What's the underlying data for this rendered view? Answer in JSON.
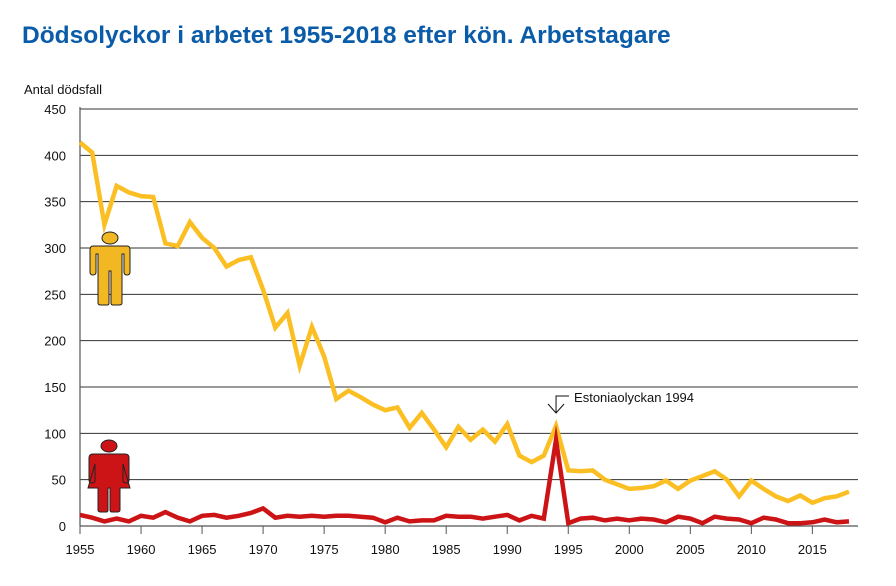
{
  "chart_data": {
    "type": "line",
    "title": "Dödsolyckor i arbetet 1955-2018 efter kön. Arbetstagare",
    "xlabel": "",
    "ylabel": "Antal dödsfall",
    "xlim": [
      1955,
      2018
    ],
    "ylim": [
      0,
      450
    ],
    "grid": true,
    "x_ticks": [
      "1955",
      "1960",
      "1965",
      "1970",
      "1975",
      "1980",
      "1985",
      "1990",
      "1995",
      "2000",
      "2005",
      "2010",
      "2015"
    ],
    "y_ticks": [
      "0",
      "50",
      "100",
      "150",
      "200",
      "250",
      "300",
      "350",
      "400",
      "450"
    ],
    "legend": "icons (man icon for yellow series, woman icon for red series)",
    "annotation": {
      "text": "Estoniaolyckan 1994",
      "x": 1994
    },
    "x": [
      1955,
      1956,
      1957,
      1958,
      1959,
      1960,
      1961,
      1962,
      1963,
      1964,
      1965,
      1966,
      1967,
      1968,
      1969,
      1970,
      1971,
      1972,
      1973,
      1974,
      1975,
      1976,
      1977,
      1978,
      1979,
      1980,
      1981,
      1982,
      1983,
      1984,
      1985,
      1986,
      1987,
      1988,
      1989,
      1990,
      1991,
      1992,
      1993,
      1994,
      1995,
      1996,
      1997,
      1998,
      1999,
      2000,
      2001,
      2002,
      2003,
      2004,
      2005,
      2006,
      2007,
      2008,
      2009,
      2010,
      2011,
      2012,
      2013,
      2014,
      2015,
      2016,
      2017,
      2018
    ],
    "series": [
      {
        "color": "#fbbf24",
        "icon": "man-icon",
        "values": [
          414,
          403,
          325,
          367,
          360,
          356,
          355,
          305,
          302,
          328,
          311,
          300,
          280,
          287,
          290,
          255,
          214,
          230,
          173,
          215,
          183,
          137,
          146,
          139,
          131,
          125,
          128,
          106,
          122,
          104,
          85,
          107,
          93,
          104,
          91,
          110,
          76,
          69,
          76,
          108,
          60,
          59,
          60,
          50,
          45,
          40,
          41,
          43,
          49,
          40,
          49,
          54,
          59,
          50,
          32,
          49,
          40,
          32,
          27,
          33,
          25,
          30,
          32,
          37
        ]
      },
      {
        "color": "#cc1417",
        "icon": "woman-icon",
        "values": [
          12,
          9,
          5,
          8,
          5,
          11,
          9,
          15,
          9,
          5,
          11,
          12,
          9,
          11,
          14,
          19,
          9,
          11,
          10,
          11,
          10,
          11,
          11,
          10,
          9,
          4,
          9,
          5,
          6,
          6,
          11,
          10,
          10,
          8,
          10,
          12,
          6,
          11,
          8,
          93,
          3,
          8,
          9,
          6,
          8,
          6,
          8,
          7,
          4,
          10,
          8,
          3,
          10,
          8,
          7,
          3,
          9,
          7,
          3,
          3,
          4,
          7,
          4,
          5
        ]
      }
    ]
  }
}
